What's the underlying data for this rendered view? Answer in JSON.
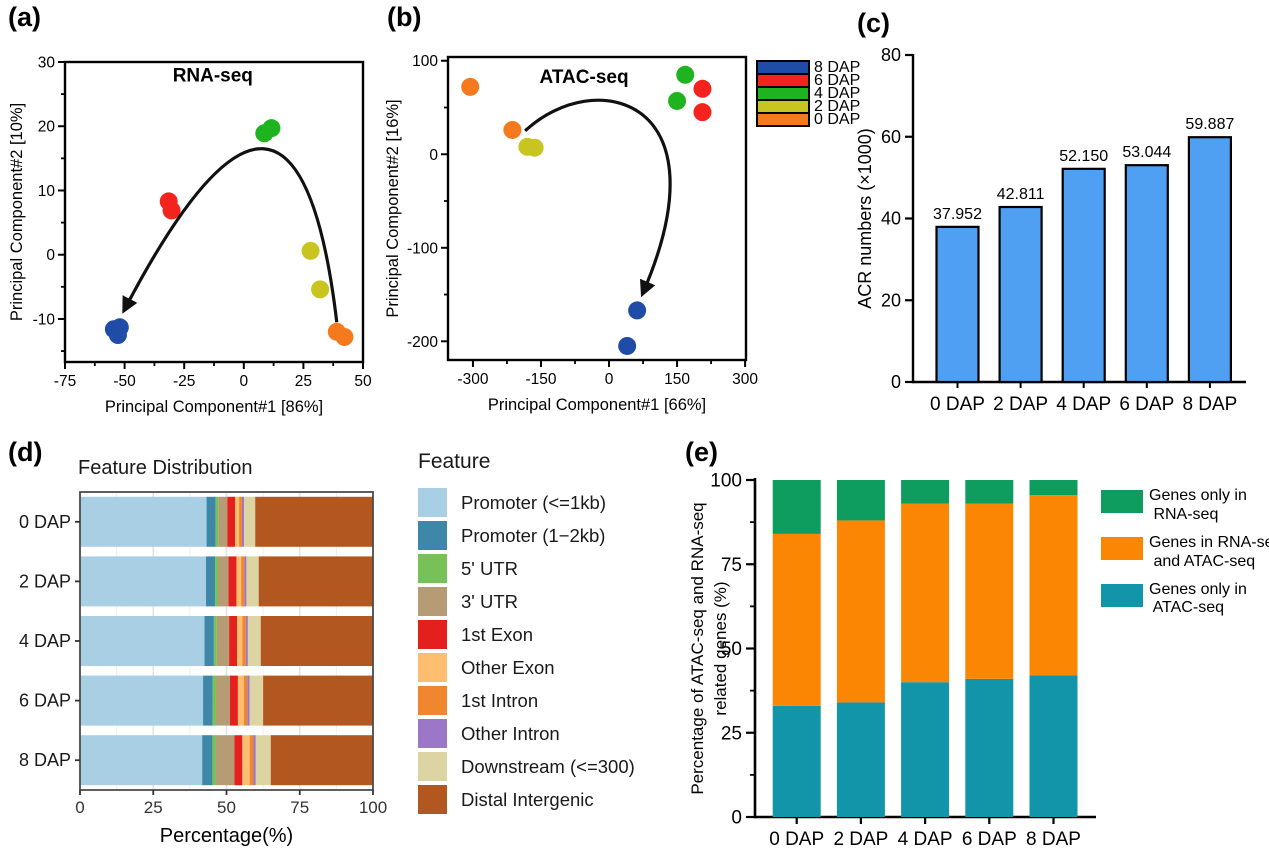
{
  "figure": {
    "background": "#ffffff"
  },
  "chart_data": [
    {
      "id": "a",
      "tag": "(a)",
      "type": "scatter",
      "title": "RNA-seq",
      "xlabel": "Principal Component#1 [86%]",
      "ylabel": "Principal Component#2 [10%]",
      "xlim": [
        -75,
        50
      ],
      "ylim": [
        -16.7,
        30
      ],
      "xticks": [
        -75,
        -50,
        -25,
        0,
        25,
        50
      ],
      "yticks": [
        30,
        20,
        10,
        0,
        -10
      ],
      "title_pos": [
        -13,
        27
      ],
      "series": [
        {
          "name": "0 DAP",
          "color": "#F5791D",
          "points": [
            [
              39,
              -12
            ],
            [
              42.2,
              -12.8
            ]
          ]
        },
        {
          "name": "2 DAP",
          "color": "#C8C521",
          "points": [
            [
              28,
              0.6
            ],
            [
              32,
              -5.4
            ]
          ]
        },
        {
          "name": "4 DAP",
          "color": "#1FB41F",
          "points": [
            [
              8.6,
              18.9
            ],
            [
              11.6,
              19.7
            ]
          ]
        },
        {
          "name": "6 DAP",
          "color": "#F5231E",
          "points": [
            [
              -31.5,
              8.3
            ],
            [
              -30.3,
              6.9
            ]
          ]
        },
        {
          "name": "8 DAP",
          "color": "#1F4CA6",
          "points": [
            [
              -54.5,
              -11.6
            ],
            [
              -52.8,
              -12.5
            ],
            [
              -52,
              -11.3
            ]
          ]
        }
      ],
      "arrow": {
        "from": [
          39,
          -10.5
        ],
        "control": [
          22,
          42.5
        ],
        "to": [
          -50,
          -8.5
        ]
      }
    },
    {
      "id": "b",
      "tag": "(b)",
      "type": "scatter",
      "title": "ATAC-seq",
      "xlabel": "Principal Component#1 [66%]",
      "ylabel": "Principal Component#2 [16%]",
      "xlim": [
        -355,
        302
      ],
      "ylim": [
        -220,
        104
      ],
      "xticks": [
        -300,
        -150,
        0,
        150,
        300
      ],
      "yticks": [
        100,
        0,
        -100,
        -200
      ],
      "title_pos": [
        -55,
        76
      ],
      "series": [
        {
          "name": "0 DAP",
          "color": "#F5791D",
          "points": [
            [
              -306,
              72
            ],
            [
              -213,
              26
            ]
          ]
        },
        {
          "name": "2 DAP",
          "color": "#C8C521",
          "points": [
            [
              -180,
              8
            ],
            [
              -164,
              7
            ]
          ]
        },
        {
          "name": "4 DAP",
          "color": "#1FB41F",
          "points": [
            [
              168,
              85
            ],
            [
              150,
              57
            ]
          ]
        },
        {
          "name": "6 DAP",
          "color": "#F5231E",
          "points": [
            [
              206,
              70
            ],
            [
              206,
              45
            ]
          ]
        },
        {
          "name": "8 DAP",
          "color": "#1F4CA6",
          "points": [
            [
              62,
              -167
            ],
            [
              40,
              -205
            ]
          ]
        }
      ],
      "arrow": {
        "from": [
          -185,
          25
        ],
        "c1": [
          -30,
          95
        ],
        "c2": [
          260,
          60
        ],
        "to": [
          75,
          -148
        ]
      },
      "legend": {
        "items": [
          {
            "label": "8 DAP",
            "color": "#1F4CA6"
          },
          {
            "label": "6 DAP",
            "color": "#F5231E"
          },
          {
            "label": "4 DAP",
            "color": "#1FB41F"
          },
          {
            "label": "2 DAP",
            "color": "#C8C521"
          },
          {
            "label": "0 DAP",
            "color": "#F5791D"
          }
        ]
      }
    },
    {
      "id": "c",
      "tag": "(c)",
      "type": "bar",
      "ylabel": "ACR numbers (×1000)",
      "categories": [
        "0 DAP",
        "2 DAP",
        "4 DAP",
        "6 DAP",
        "8 DAP"
      ],
      "values": [
        37.952,
        42.811,
        52.15,
        53.044,
        59.887
      ],
      "value_labels": [
        "37.952",
        "42.811",
        "52.150",
        "53.044",
        "59.887"
      ],
      "ylim": [
        0,
        80
      ],
      "yticks": [
        0,
        20,
        40,
        60,
        80
      ],
      "bar_color": "#4FA0F2"
    },
    {
      "id": "d",
      "tag": "(d)",
      "type": "stacked-bar-horizontal",
      "title": "Feature Distribution",
      "xlabel": "Percentage(%)",
      "legend_title": "Feature",
      "categories": [
        "0 DAP",
        "2 DAP",
        "4 DAP",
        "6 DAP",
        "8 DAP"
      ],
      "xticks": [
        0,
        25,
        50,
        75,
        100
      ],
      "features": [
        {
          "label": "Promoter (<=1kb)",
          "color": "#A9CFE5"
        },
        {
          "label": "Promoter (1−2kb)",
          "color": "#3E87A8"
        },
        {
          "label": "5' UTR",
          "color": "#76C258"
        },
        {
          "label": "3' UTR",
          "color": "#B59C74"
        },
        {
          "label": "1st Exon",
          "color": "#E4201F"
        },
        {
          "label": "Other Exon",
          "color": "#FDBF6F"
        },
        {
          "label": "1st Intron",
          "color": "#F0862D"
        },
        {
          "label": "Other Intron",
          "color": "#9B77C8"
        },
        {
          "label": "Downstream (<=300)",
          "color": "#DCD5A3"
        },
        {
          "label": "Distal Intergenic",
          "color": "#B2571F"
        }
      ],
      "rows": [
        [
          43.2,
          3.1,
          0.9,
          3.1,
          2.6,
          1.4,
          1.0,
          0.7,
          3.8,
          40.2
        ],
        [
          43.0,
          3.1,
          1.0,
          3.6,
          2.7,
          1.6,
          1.1,
          0.7,
          4.2,
          39.0
        ],
        [
          42.5,
          3.2,
          1.0,
          4.2,
          2.7,
          1.8,
          1.2,
          0.7,
          4.4,
          38.3
        ],
        [
          42.0,
          3.3,
          1.1,
          4.8,
          2.7,
          2.0,
          1.2,
          0.8,
          4.6,
          37.5
        ],
        [
          41.7,
          3.5,
          1.2,
          6.3,
          2.7,
          2.5,
          1.3,
          0.8,
          5.1,
          34.9
        ]
      ]
    },
    {
      "id": "e",
      "tag": "(e)",
      "type": "stacked-bar-vertical",
      "ylabel_lines": [
        "Percentage of ATAC-seq and RNA-seq",
        "related genes (%)"
      ],
      "categories": [
        "0 DAP",
        "2 DAP",
        "4 DAP",
        "6 DAP",
        "8 DAP"
      ],
      "ylim": [
        0,
        100
      ],
      "yticks": [
        0,
        25,
        50,
        75,
        100
      ],
      "series": [
        {
          "name": "Genes only in ATAC-seq",
          "color": "#1295A9",
          "values": [
            33,
            34,
            40,
            41,
            42
          ]
        },
        {
          "name": "Genes in RNA-seq and ATAC-seq",
          "color": "#FB8604",
          "values": [
            51,
            54,
            53,
            52,
            53.5
          ]
        },
        {
          "name": "Genes only in RNA-seq",
          "color": "#0E9C5F",
          "values": [
            16,
            12,
            7,
            7,
            4.5
          ]
        }
      ],
      "legend": {
        "items": [
          {
            "label_lines": [
              "Genes only in",
              " RNA-seq"
            ],
            "color": "#0E9C5F"
          },
          {
            "label_lines": [
              "Genes in RNA-seq",
              " and ATAC-seq"
            ],
            "color": "#FB8604"
          },
          {
            "label_lines": [
              "Genes only in",
              " ATAC-seq"
            ],
            "color": "#1295A9"
          }
        ]
      }
    }
  ]
}
